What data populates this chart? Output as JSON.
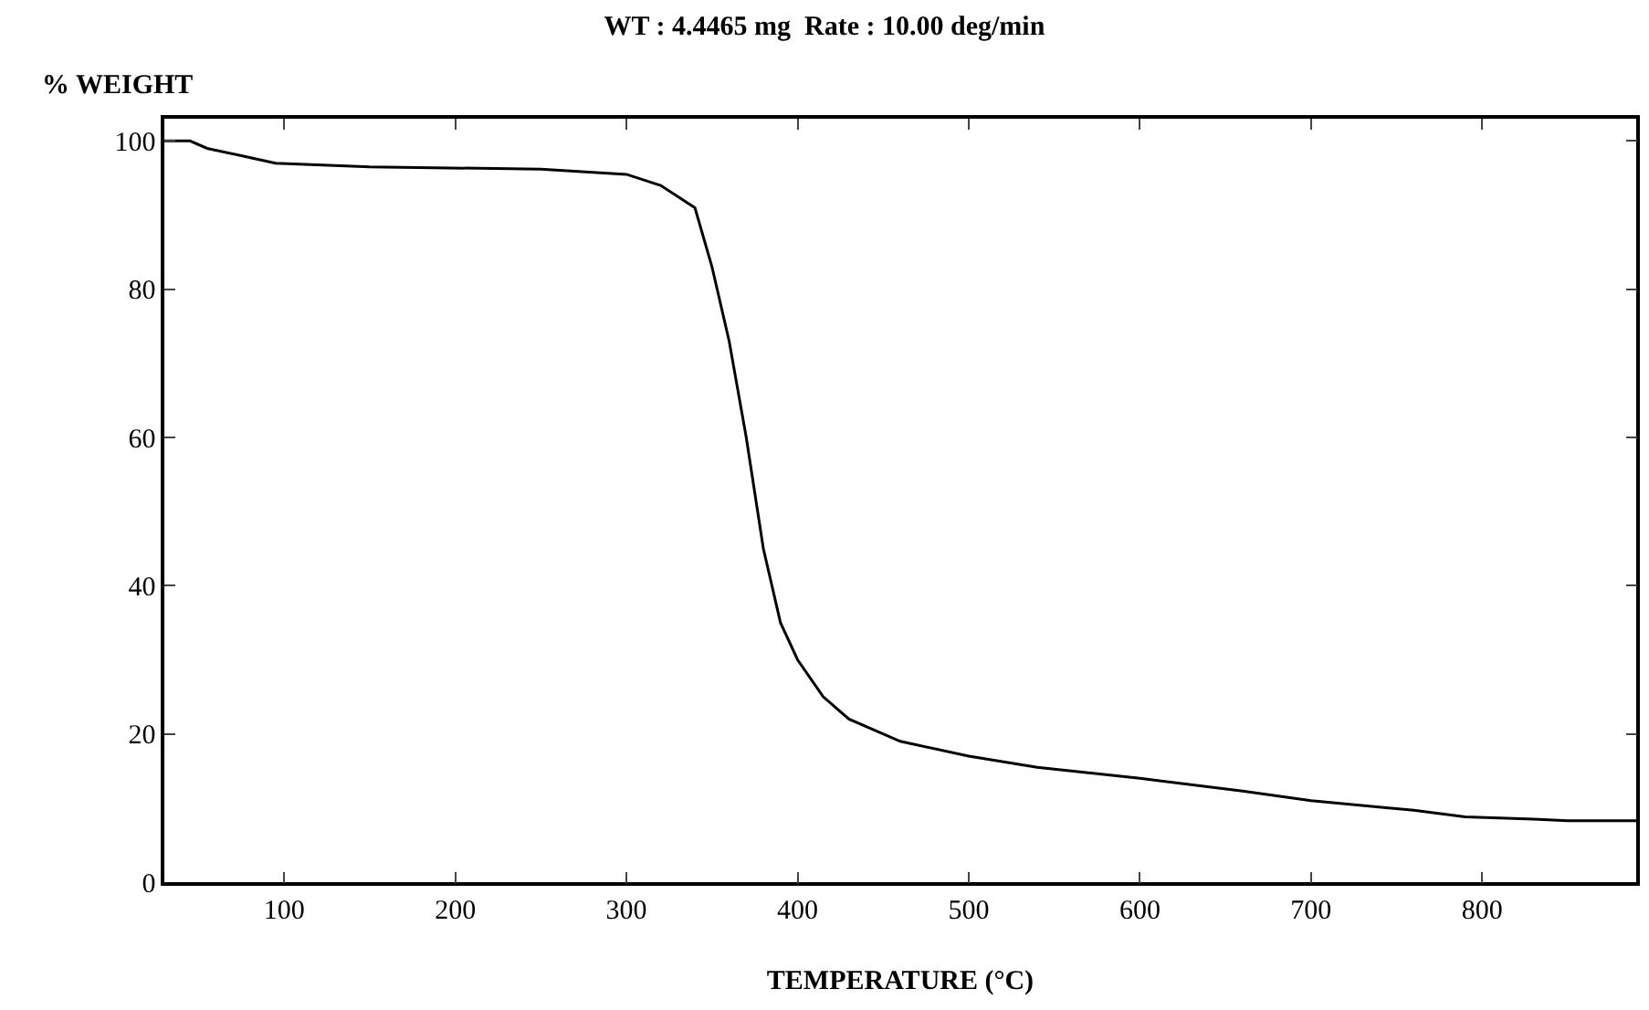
{
  "chart_data": {
    "type": "line",
    "title": "WT : 4.4465 mg  Rate : 10.00 deg/min",
    "xlabel": "TEMPERATURE (°C)",
    "ylabel": "% WEIGHT",
    "x": [
      30,
      45,
      55,
      75,
      95,
      150,
      250,
      300,
      320,
      340,
      350,
      360,
      370,
      380,
      390,
      400,
      415,
      430,
      460,
      500,
      540,
      600,
      660,
      700,
      760,
      790,
      830,
      850,
      890
    ],
    "series": [
      {
        "color": "#000000",
        "values": [
          100,
          100,
          99,
          98,
          97,
          96.5,
          96.2,
          95.5,
          94,
          91,
          83,
          73,
          60,
          45,
          35,
          30,
          25,
          22,
          19,
          17,
          15.5,
          14,
          12.3,
          11,
          9.7,
          8.8,
          8.5,
          8.3,
          8.3
        ]
      }
    ],
    "xlim": [
      30,
      890
    ],
    "ylim": [
      0,
      103
    ],
    "xticks": [
      100,
      200,
      300,
      400,
      500,
      600,
      700,
      800
    ],
    "yticks": [
      0,
      20,
      40,
      60,
      80,
      100
    ],
    "marker": "none",
    "line_style": "solid"
  }
}
